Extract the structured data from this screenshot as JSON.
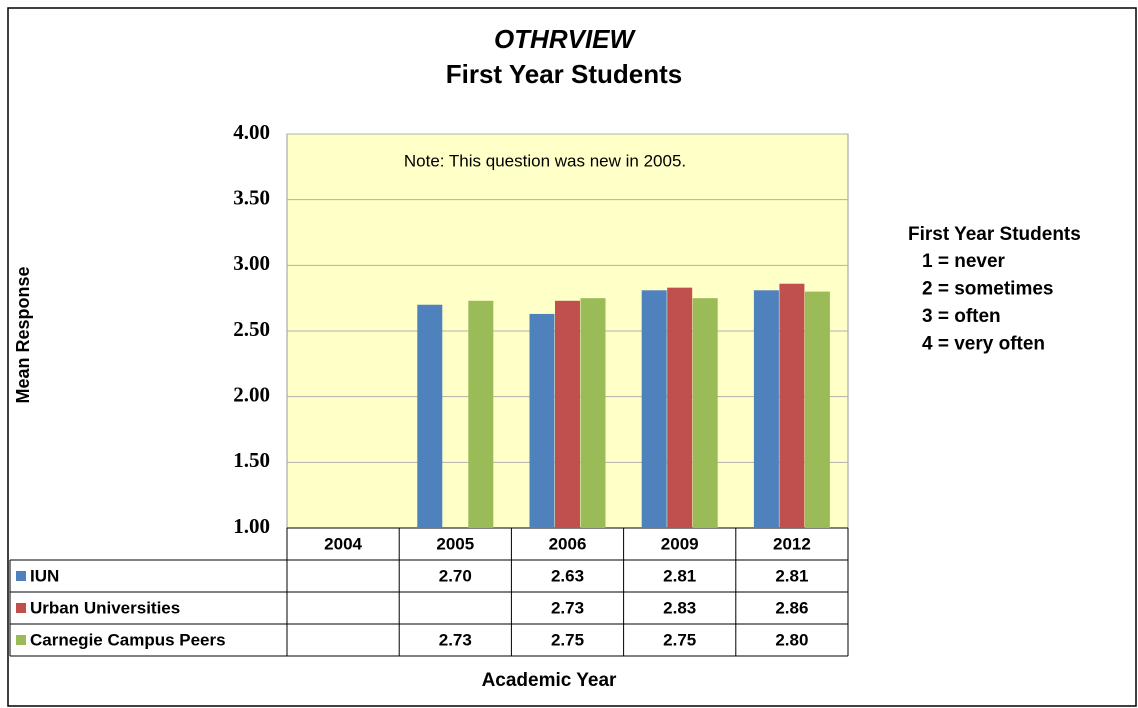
{
  "chart_data": {
    "type": "bar",
    "title": "OTHRVIEW",
    "subtitle": "First Year Students",
    "annotation": "Note: This question was new in 2005.",
    "y_label": "Mean Response",
    "x_label": "Academic Year",
    "categories": [
      "2004",
      "2005",
      "2006",
      "2009",
      "2012"
    ],
    "series": [
      {
        "name": "IUN",
        "color": "#4f81bd",
        "values": [
          null,
          2.7,
          2.63,
          2.81,
          2.81
        ],
        "value_labels": [
          null,
          "2.70",
          "2.63",
          "2.81",
          "2.81"
        ]
      },
      {
        "name": "Urban Universities",
        "color": "#c0504d",
        "values": [
          null,
          null,
          2.73,
          2.83,
          2.86
        ],
        "value_labels": [
          null,
          null,
          "2.73",
          "2.83",
          "2.86"
        ]
      },
      {
        "name": "Carnegie Campus Peers",
        "color": "#9bbb59",
        "values": [
          null,
          2.73,
          2.75,
          2.75,
          2.8
        ],
        "value_labels": [
          null,
          "2.73",
          "2.75",
          "2.75",
          "2.80"
        ]
      }
    ],
    "ylim": [
      1,
      4
    ],
    "yticks": [
      {
        "value": 1,
        "label": "1.00"
      },
      {
        "value": 1.5,
        "label": "1.50"
      },
      {
        "value": 2,
        "label": "2.00"
      },
      {
        "value": 2.5,
        "label": "2.50"
      },
      {
        "value": 3,
        "label": "3.00"
      },
      {
        "value": 3.5,
        "label": "3.50"
      },
      {
        "value": 4,
        "label": "4.00"
      }
    ],
    "grid": true,
    "side_note": {
      "title": "First Year Students",
      "lines": [
        "1 = never",
        "2 = sometimes",
        "3 = often",
        "4 = very often"
      ]
    }
  }
}
